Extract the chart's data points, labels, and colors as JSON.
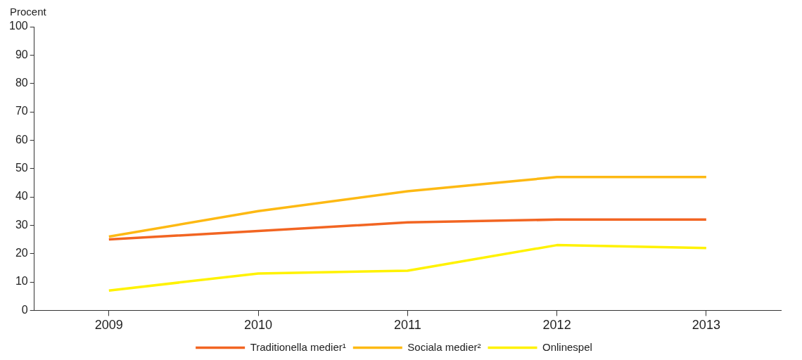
{
  "chart_data": {
    "type": "line",
    "ylabel": "Procent",
    "categories": [
      "2009",
      "2010",
      "2011",
      "2012",
      "2013"
    ],
    "series": [
      {
        "name": "Traditionella medier¹",
        "color": "#f26522",
        "values": [
          25,
          28,
          31,
          32,
          32
        ]
      },
      {
        "name": "Sociala medier²",
        "color": "#fdb913",
        "values": [
          26,
          35,
          42,
          47,
          47
        ]
      },
      {
        "name": "Onlinespel",
        "color": "#fff200",
        "values": [
          7,
          13,
          14,
          23,
          22
        ]
      }
    ],
    "ylim": [
      0,
      100
    ],
    "yticks": [
      0,
      10,
      20,
      30,
      40,
      50,
      60,
      70,
      80,
      90,
      100
    ],
    "grid": false,
    "legend": "bottom",
    "marker": "none",
    "line_style": "solid"
  }
}
